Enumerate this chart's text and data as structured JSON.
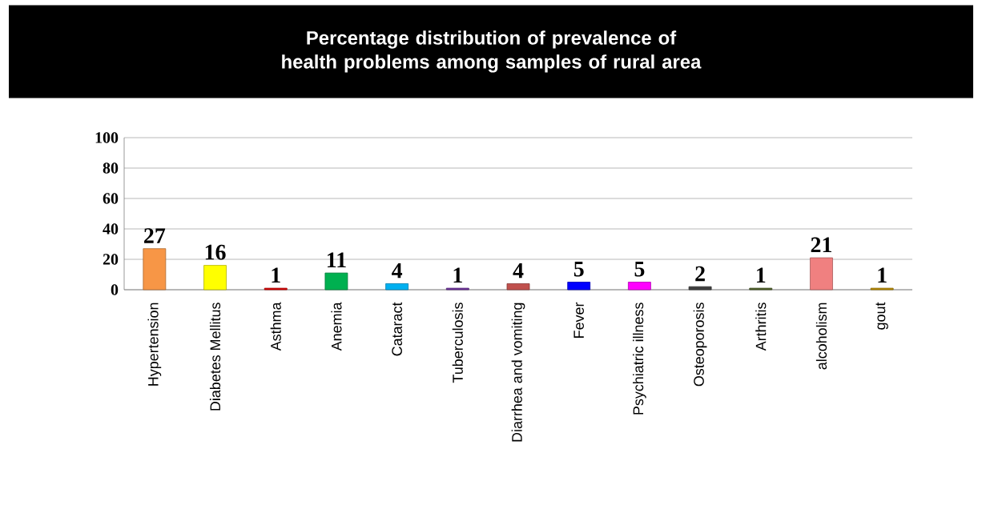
{
  "chart_data": {
    "type": "bar",
    "title": "Percentage distribution of prevalence of health problems among samples of rural area",
    "categories": [
      "Hypertension",
      "Diabetes Mellitus",
      "Asthma",
      "Anemia",
      "Cataract",
      "Tuberculosis",
      "Diarrhea and vomiting",
      "Fever",
      "Psychiatric illness",
      "Osteoporosis",
      "Arthritis",
      "alcoholism",
      "gout"
    ],
    "values": [
      27,
      16,
      1,
      11,
      4,
      1,
      4,
      5,
      5,
      2,
      1,
      21,
      1
    ],
    "colors": [
      "#f79646",
      "#ffff00",
      "#e00000",
      "#00b050",
      "#00b0f0",
      "#7030a0",
      "#c0504d",
      "#0000ff",
      "#ff00ff",
      "#404040",
      "#4f6228",
      "#f08080",
      "#c09000"
    ],
    "ylim": [
      0,
      100
    ],
    "yticks": [
      0,
      20,
      40,
      60,
      80,
      100
    ],
    "grid": "y",
    "data_labels": true
  }
}
